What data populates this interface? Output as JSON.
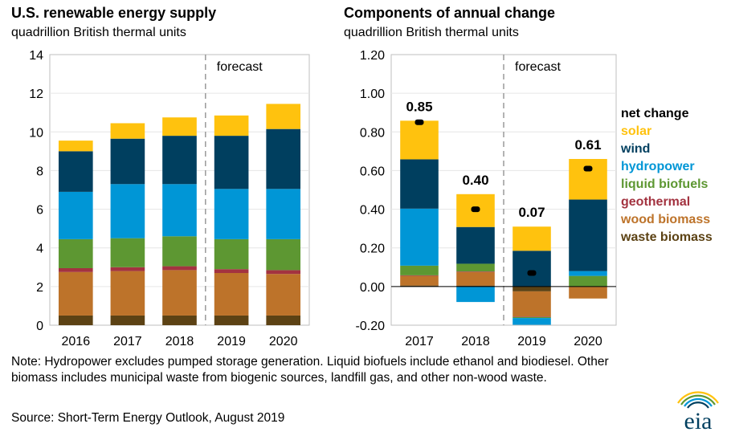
{
  "left_title": "U.S. renewable energy supply",
  "left_subtitle": "quadrillion  British thermal units",
  "right_title": "Components of annual change",
  "right_subtitle": "quadrillion  British thermal units",
  "note": "Note: Hydropower excludes pumped storage generation.  Liquid biofuels include ethanol and biodiesel.  Other biomass includes municipal waste from biogenic sources, landfill gas, and other non-wood waste.",
  "source": "Source: Short-Term Energy Outlook, August 2019",
  "logo_text": "eia",
  "colors": {
    "solar": "#FFC20E",
    "wind": "#003F5F",
    "hydropower": "#0096D6",
    "liquid_biofuels": "#5D9732",
    "geothermal": "#A33340",
    "wood_biomass": "#BD732A",
    "waste_biomass": "#5C4214",
    "net_change": "#000000"
  },
  "legend": [
    {
      "key": "net_change",
      "label": "net change"
    },
    {
      "key": "solar",
      "label": "solar"
    },
    {
      "key": "wind",
      "label": "wind"
    },
    {
      "key": "hydropower",
      "label": "hydropower"
    },
    {
      "key": "liquid_biofuels",
      "label": "liquid biofuels"
    },
    {
      "key": "geothermal",
      "label": "geothermal"
    },
    {
      "key": "wood_biomass",
      "label": "wood biomass"
    },
    {
      "key": "waste_biomass",
      "label": "waste biomass"
    }
  ],
  "chart_data": [
    {
      "type": "bar",
      "stacked": true,
      "title": "U.S. renewable energy supply",
      "ylabel": "quadrillion  British thermal units",
      "categories": [
        "2016",
        "2017",
        "2018",
        "2019",
        "2020"
      ],
      "ylim": [
        0,
        14
      ],
      "yticks": [
        "0",
        "2",
        "4",
        "6",
        "8",
        "10",
        "12",
        "14"
      ],
      "forecast_label": "forecast",
      "forecast_start": "2019",
      "series": [
        {
          "key": "waste_biomass",
          "name": "waste biomass",
          "values": [
            0.5,
            0.5,
            0.5,
            0.5,
            0.5
          ]
        },
        {
          "key": "wood_biomass",
          "name": "wood biomass",
          "values": [
            2.25,
            2.3,
            2.35,
            2.2,
            2.15
          ]
        },
        {
          "key": "geothermal",
          "name": "geothermal",
          "values": [
            0.2,
            0.2,
            0.2,
            0.2,
            0.2
          ]
        },
        {
          "key": "liquid_biofuels",
          "name": "liquid biofuels",
          "values": [
            1.5,
            1.5,
            1.55,
            1.55,
            1.6
          ]
        },
        {
          "key": "hydropower",
          "name": "hydropower",
          "values": [
            2.45,
            2.8,
            2.7,
            2.6,
            2.6
          ]
        },
        {
          "key": "wind",
          "name": "wind",
          "values": [
            2.1,
            2.35,
            2.5,
            2.75,
            3.1
          ]
        },
        {
          "key": "solar",
          "name": "solar",
          "values": [
            0.55,
            0.8,
            0.95,
            1.05,
            1.3
          ]
        }
      ]
    },
    {
      "type": "bar",
      "stacked": true,
      "title": "Components of annual change",
      "ylabel": "quadrillion  British thermal units",
      "categories": [
        "2017",
        "2018",
        "2019",
        "2020"
      ],
      "ylim": [
        -0.2,
        1.2
      ],
      "yticks": [
        "-0.20",
        "0.00",
        "0.20",
        "0.40",
        "0.60",
        "0.80",
        "1.00",
        "1.20"
      ],
      "forecast_label": "forecast",
      "forecast_start": "2019",
      "series": [
        {
          "key": "waste_biomass",
          "name": "waste biomass",
          "values": [
            0.005,
            0.005,
            -0.025,
            -0.002
          ]
        },
        {
          "key": "wood_biomass",
          "name": "wood biomass",
          "values": [
            0.05,
            0.07,
            -0.13,
            -0.06
          ]
        },
        {
          "key": "geothermal",
          "name": "geothermal",
          "values": [
            0.003,
            0.003,
            -0.003,
            0.0
          ]
        },
        {
          "key": "liquid_biofuels",
          "name": "liquid biofuels",
          "values": [
            0.05,
            0.04,
            -0.005,
            0.055
          ]
        },
        {
          "key": "hydropower",
          "name": "hydropower",
          "values": [
            0.295,
            -0.08,
            -0.035,
            0.025
          ]
        },
        {
          "key": "wind",
          "name": "wind",
          "values": [
            0.255,
            0.19,
            0.185,
            0.37
          ]
        },
        {
          "key": "solar",
          "name": "solar",
          "values": [
            0.2,
            0.17,
            0.125,
            0.21
          ]
        }
      ],
      "net_change": {
        "name": "net change",
        "values": [
          0.85,
          0.4,
          0.07,
          0.61
        ],
        "labels": [
          "0.85",
          "0.40",
          "0.07",
          "0.61"
        ]
      }
    }
  ]
}
